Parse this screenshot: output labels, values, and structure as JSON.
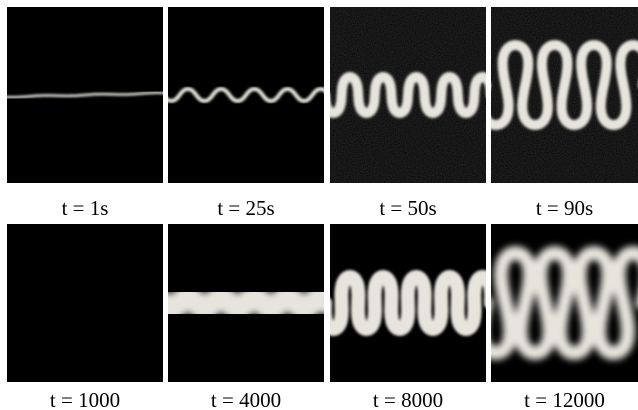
{
  "figure": {
    "panels": [
      {
        "caption": "t = 1s"
      },
      {
        "caption": "t = 25s"
      },
      {
        "caption": "t = 50s"
      },
      {
        "caption": "t = 90s"
      },
      {
        "caption": "t = 1000"
      },
      {
        "caption": "t = 4000"
      },
      {
        "caption": "t = 8000"
      },
      {
        "caption": "t = 12000"
      }
    ]
  }
}
